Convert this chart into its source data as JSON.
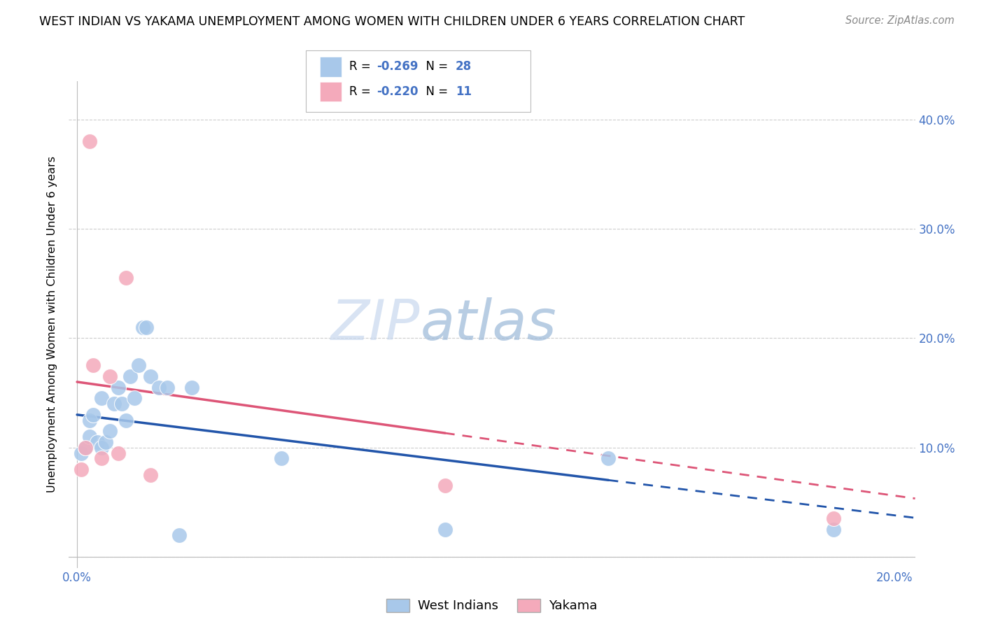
{
  "title": "WEST INDIAN VS YAKAMA UNEMPLOYMENT AMONG WOMEN WITH CHILDREN UNDER 6 YEARS CORRELATION CHART",
  "source": "Source: ZipAtlas.com",
  "ylabel": "Unemployment Among Women with Children Under 6 years",
  "xlim": [
    -0.002,
    0.205
  ],
  "ylim": [
    -0.01,
    0.435
  ],
  "xticks": [
    0.0,
    0.04,
    0.08,
    0.12,
    0.16,
    0.2
  ],
  "yticks": [
    0.0,
    0.1,
    0.2,
    0.3,
    0.4
  ],
  "west_indians_x": [
    0.001,
    0.002,
    0.003,
    0.003,
    0.004,
    0.005,
    0.006,
    0.006,
    0.007,
    0.008,
    0.009,
    0.01,
    0.011,
    0.012,
    0.013,
    0.014,
    0.015,
    0.016,
    0.017,
    0.018,
    0.02,
    0.022,
    0.025,
    0.028,
    0.05,
    0.09,
    0.13,
    0.185
  ],
  "west_indians_y": [
    0.095,
    0.1,
    0.11,
    0.125,
    0.13,
    0.105,
    0.1,
    0.145,
    0.105,
    0.115,
    0.14,
    0.155,
    0.14,
    0.125,
    0.165,
    0.145,
    0.175,
    0.21,
    0.21,
    0.165,
    0.155,
    0.155,
    0.02,
    0.155,
    0.09,
    0.025,
    0.09,
    0.025
  ],
  "yakama_x": [
    0.001,
    0.002,
    0.003,
    0.004,
    0.006,
    0.008,
    0.01,
    0.012,
    0.018,
    0.09,
    0.185
  ],
  "yakama_y": [
    0.08,
    0.1,
    0.38,
    0.175,
    0.09,
    0.165,
    0.095,
    0.255,
    0.075,
    0.065,
    0.035
  ],
  "wi_R": -0.269,
  "wi_N": 28,
  "ya_R": -0.22,
  "ya_N": 11,
  "blue_color": "#A8C8EA",
  "pink_color": "#F4AABB",
  "blue_line_color": "#2255AA",
  "pink_line_color": "#DD5577",
  "watermark_zip": "ZIP",
  "watermark_atlas": "atlas",
  "background_color": "#FFFFFF",
  "grid_color": "#CCCCCC"
}
